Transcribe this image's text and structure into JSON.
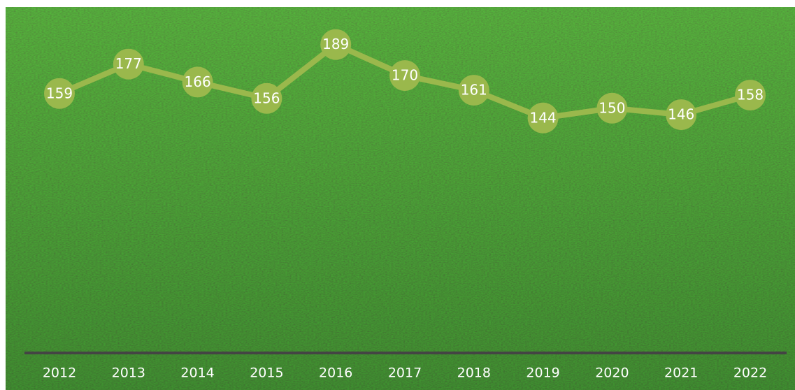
{
  "chart_data": {
    "type": "line",
    "categories": [
      "2012",
      "2013",
      "2014",
      "2015",
      "2016",
      "2017",
      "2018",
      "2019",
      "2020",
      "2021",
      "2022"
    ],
    "values": [
      159,
      177,
      166,
      156,
      189,
      170,
      161,
      144,
      150,
      146,
      158
    ],
    "color": "#9ab84c",
    "ylim": [
      0,
      212
    ]
  }
}
